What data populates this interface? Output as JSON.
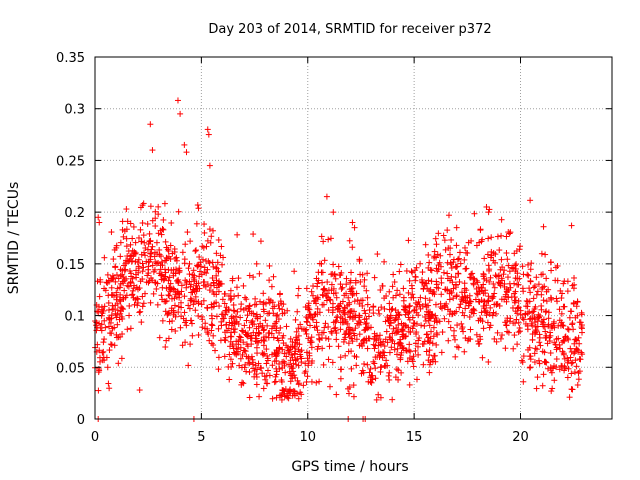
{
  "chart_data": {
    "type": "scatter",
    "title": "Day 203 of 2014, SRMTID for receiver p372",
    "xlabel": "GPS time / hours",
    "ylabel": "SRMTID / TECUs",
    "xlim": [
      0,
      24.3
    ],
    "ylim": [
      0,
      0.35
    ],
    "xticks": [
      0,
      5,
      10,
      15,
      20
    ],
    "yticks": [
      0,
      0.05,
      0.1,
      0.15,
      0.2,
      0.25,
      0.3,
      0.35
    ],
    "ytick_labels": [
      "0",
      "0.05",
      "0.1",
      "0.15",
      "0.2",
      "0.25",
      "0.3",
      "0.35"
    ],
    "xtick_labels": [
      "0",
      "5",
      "10",
      "15",
      "20"
    ],
    "grid": true,
    "marker": "+",
    "color": "#ff0000",
    "trend": [
      [
        0.0,
        0.085
      ],
      [
        0.5,
        0.095
      ],
      [
        1.0,
        0.11
      ],
      [
        1.5,
        0.135
      ],
      [
        2.0,
        0.145
      ],
      [
        2.5,
        0.16
      ],
      [
        3.0,
        0.155
      ],
      [
        3.5,
        0.13
      ],
      [
        4.0,
        0.125
      ],
      [
        4.5,
        0.125
      ],
      [
        5.0,
        0.14
      ],
      [
        5.5,
        0.13
      ],
      [
        6.0,
        0.11
      ],
      [
        6.5,
        0.085
      ],
      [
        7.0,
        0.075
      ],
      [
        7.5,
        0.08
      ],
      [
        8.0,
        0.075
      ],
      [
        8.5,
        0.065
      ],
      [
        9.0,
        0.045
      ],
      [
        9.5,
        0.055
      ],
      [
        10.0,
        0.075
      ],
      [
        10.5,
        0.1
      ],
      [
        11.0,
        0.11
      ],
      [
        11.5,
        0.1
      ],
      [
        12.0,
        0.095
      ],
      [
        12.5,
        0.085
      ],
      [
        13.0,
        0.075
      ],
      [
        13.5,
        0.075
      ],
      [
        14.0,
        0.085
      ],
      [
        14.5,
        0.09
      ],
      [
        15.0,
        0.095
      ],
      [
        15.5,
        0.1
      ],
      [
        16.0,
        0.105
      ],
      [
        16.5,
        0.125
      ],
      [
        17.0,
        0.125
      ],
      [
        17.5,
        0.12
      ],
      [
        18.0,
        0.115
      ],
      [
        18.5,
        0.125
      ],
      [
        19.0,
        0.13
      ],
      [
        19.5,
        0.12
      ],
      [
        20.0,
        0.105
      ],
      [
        20.5,
        0.09
      ],
      [
        21.0,
        0.09
      ],
      [
        21.5,
        0.085
      ],
      [
        22.0,
        0.07
      ],
      [
        22.5,
        0.08
      ],
      [
        22.9,
        0.085
      ]
    ],
    "spread": 0.028,
    "noise_seed": 372,
    "n_points": 2200,
    "outliers": [
      [
        0.15,
        0.195
      ],
      [
        0.2,
        0.19
      ],
      [
        0.6,
        0.05
      ],
      [
        2.1,
        0.028
      ],
      [
        2.6,
        0.285
      ],
      [
        2.7,
        0.26
      ],
      [
        3.9,
        0.308
      ],
      [
        4.0,
        0.295
      ],
      [
        4.2,
        0.265
      ],
      [
        4.3,
        0.258
      ],
      [
        5.3,
        0.28
      ],
      [
        5.35,
        0.275
      ],
      [
        5.4,
        0.245
      ],
      [
        7.6,
        0.15
      ],
      [
        8.2,
        0.148
      ],
      [
        9.1,
        0.02
      ],
      [
        10.9,
        0.215
      ],
      [
        11.2,
        0.2
      ],
      [
        12.1,
        0.19
      ],
      [
        12.2,
        0.185
      ],
      [
        18.4,
        0.205
      ],
      [
        18.5,
        0.2
      ],
      [
        17.0,
        0.185
      ],
      [
        22.4,
        0.187
      ],
      [
        13.0,
        0.035
      ],
      [
        12.9,
        0.045
      ]
    ],
    "zero_marks": [
      0.15,
      4.65,
      11.9,
      12.6,
      12.7
    ]
  }
}
